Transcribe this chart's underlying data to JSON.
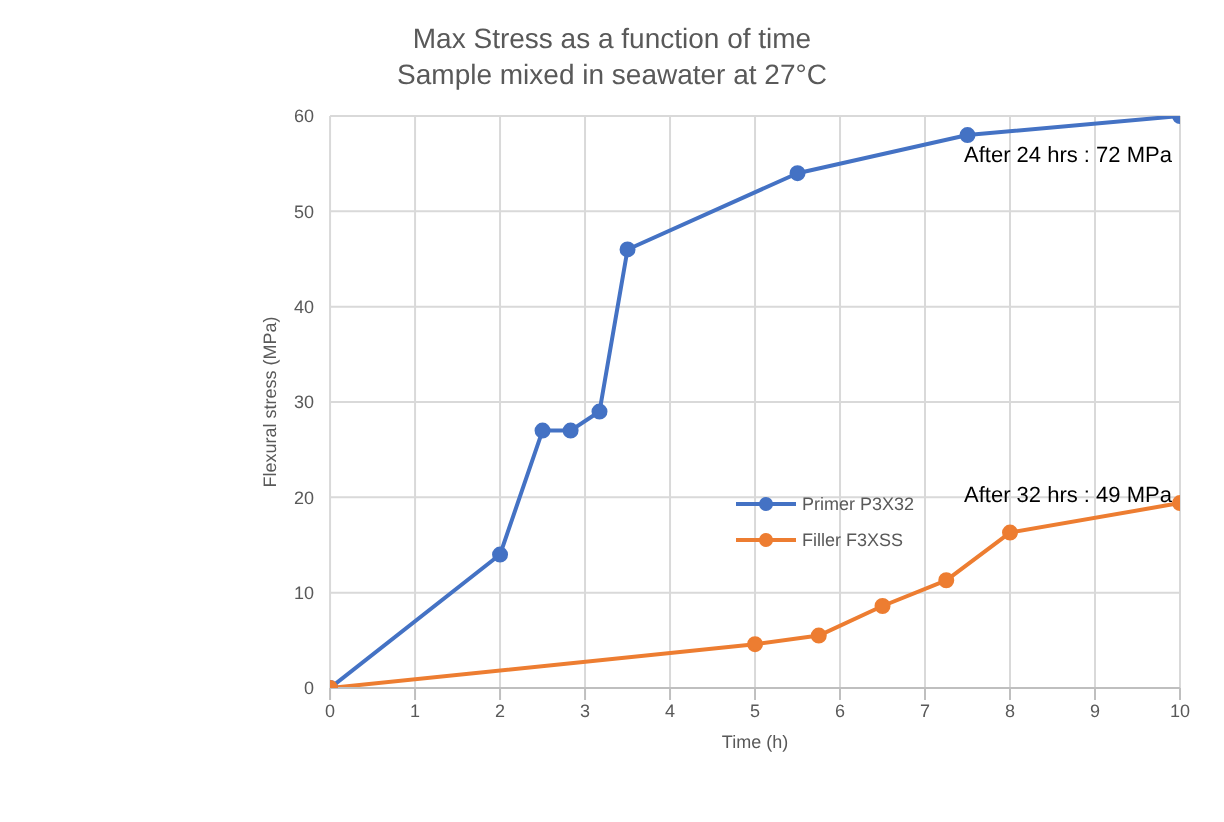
{
  "chart_data": {
    "type": "line",
    "title": "Max Stress as a function of time",
    "subtitle": "Sample mixed in seawater at 27°C",
    "xlabel": "Time (h)",
    "ylabel": "Flexural stress (MPa)",
    "series": [
      {
        "name": "Primer P3X32",
        "color": "#4472c4",
        "x": [
          0,
          2,
          2.5,
          2.83,
          3.17,
          3.5,
          5.5,
          7.5,
          10
        ],
        "values": [
          0,
          14,
          27,
          27,
          29,
          46,
          54,
          58,
          60
        ]
      },
      {
        "name": "Filler F3XSS",
        "color": "#ed7d31",
        "x": [
          0,
          5,
          5.75,
          6.5,
          7.25,
          8,
          10
        ],
        "values": [
          0,
          4.6,
          5.5,
          8.6,
          11.3,
          16.3,
          19.4
        ]
      }
    ],
    "xlim": [
      0,
      10
    ],
    "xticks": [
      0,
      1,
      2,
      3,
      4,
      5,
      6,
      7,
      8,
      9,
      10
    ],
    "ylim": [
      0,
      60
    ],
    "yticks": [
      0,
      10,
      20,
      30,
      40,
      50,
      60
    ],
    "grid": true,
    "legend": "right",
    "marker": "circle",
    "line_style": "solid",
    "annotations": [
      "After 24 hrs : 72 MPa",
      "After 32 hrs : 49 MPa"
    ]
  }
}
